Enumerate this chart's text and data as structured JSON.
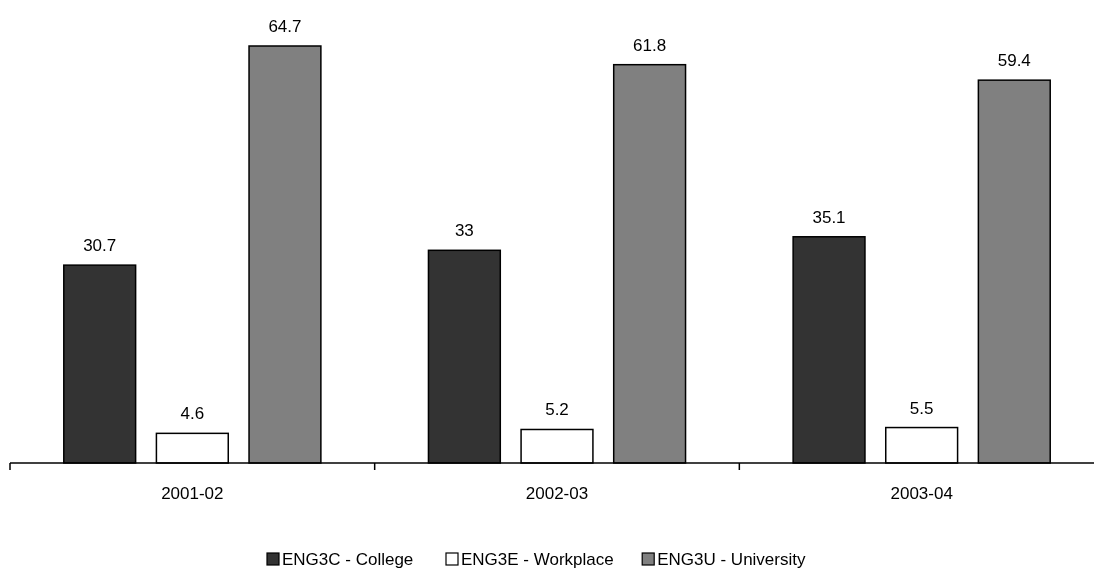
{
  "chart_data": {
    "type": "bar",
    "categories": [
      "2001-02",
      "2002-03",
      "2003-04"
    ],
    "series": [
      {
        "name": "ENG3C - College",
        "color": "#333333",
        "values": [
          30.7,
          33,
          35.1
        ]
      },
      {
        "name": "ENG3E - Workplace",
        "color": "#ffffff",
        "values": [
          4.6,
          5.2,
          5.5
        ]
      },
      {
        "name": "ENG3U - University",
        "color": "#808080",
        "values": [
          64.7,
          61.8,
          59.4
        ]
      }
    ],
    "data_labels": true,
    "legend": "bottom"
  }
}
